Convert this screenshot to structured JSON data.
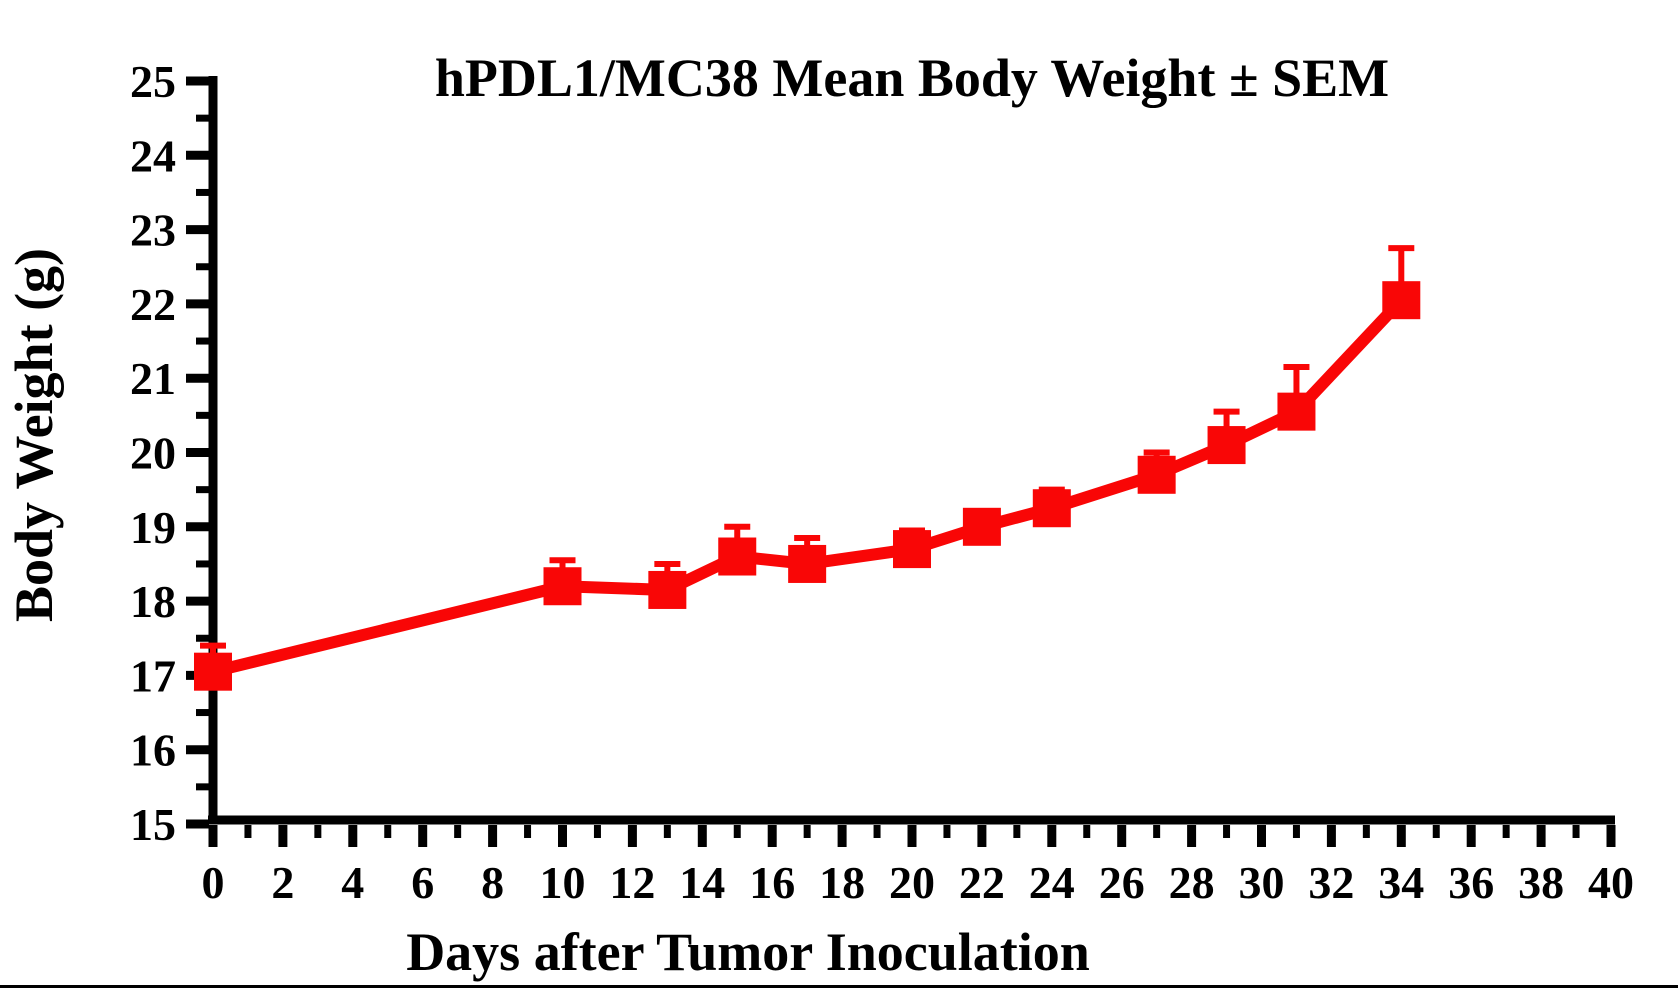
{
  "chart_data": {
    "type": "line",
    "title": "hPDL1/MC38 Mean Body Weight ± SEM",
    "xlabel": "Days after Tumor Inoculation",
    "ylabel": "Body Weight (g)",
    "xlim": [
      0,
      40
    ],
    "ylim": [
      15,
      25
    ],
    "x_major_tick_step": 2,
    "x_minor_tick_step": 1,
    "y_major_tick_step": 1,
    "y_minor_tick_step": 0.5,
    "x_tick_labels": [
      "0",
      "2",
      "4",
      "6",
      "8",
      "10",
      "12",
      "14",
      "16",
      "18",
      "20",
      "22",
      "24",
      "26",
      "28",
      "30",
      "32",
      "34",
      "36",
      "38",
      "40"
    ],
    "y_tick_labels": [
      "15",
      "16",
      "17",
      "18",
      "19",
      "20",
      "21",
      "22",
      "23",
      "24",
      "25"
    ],
    "grid": false,
    "legend": "none",
    "error_bars": "upper SEM only",
    "series": [
      {
        "name": "hPDL1/MC38 mean body weight",
        "color": "#f90606",
        "marker": "square",
        "x": [
          0,
          10,
          13,
          15,
          17,
          20,
          22,
          24,
          27,
          29,
          31,
          34
        ],
        "y": [
          17.05,
          18.2,
          18.15,
          18.6,
          18.5,
          18.7,
          19.0,
          19.25,
          19.7,
          20.1,
          20.55,
          22.05
        ],
        "sem": [
          0.35,
          0.35,
          0.35,
          0.4,
          0.35,
          0.25,
          0.2,
          0.25,
          0.3,
          0.45,
          0.6,
          0.7
        ]
      }
    ],
    "axis_color": "#000000"
  }
}
